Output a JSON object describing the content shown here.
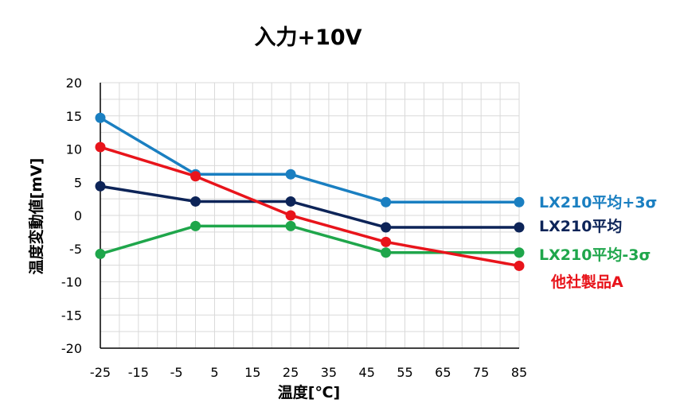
{
  "chart_data": {
    "type": "line",
    "title": "入力+10V",
    "xlabel": "温度[℃]",
    "ylabel": "温度変動値[mV]",
    "xlim": [
      -25,
      85
    ],
    "ylim": [
      -20,
      20
    ],
    "xticks": [
      -25,
      -15,
      -5,
      5,
      15,
      25,
      35,
      45,
      55,
      65,
      75,
      85
    ],
    "yticks": [
      20,
      15,
      10,
      5,
      0,
      -5,
      -10,
      -15,
      -20
    ],
    "xtick_labels": [
      "-25",
      "-15",
      "-5",
      "5",
      "15",
      "25",
      "35",
      "45",
      "55",
      "65",
      "75",
      "85"
    ],
    "ytick_labels": [
      "20",
      "15",
      "10",
      "5",
      "0",
      "-5",
      "-10",
      "-15",
      "-20"
    ],
    "grid": true,
    "legend": "series labels at right end of lines",
    "series": [
      {
        "name": "LX210平均+3σ",
        "color": "#1a7fc1",
        "x": [
          -25,
          0,
          25,
          50,
          85
        ],
        "y": [
          14.7,
          6.2,
          6.2,
          2.0,
          2.0
        ]
      },
      {
        "name": "LX210平均",
        "color": "#0d2458",
        "x": [
          -25,
          0,
          25,
          50,
          85
        ],
        "y": [
          4.4,
          2.1,
          2.1,
          -1.8,
          -1.8
        ]
      },
      {
        "name": "LX210平均-3σ",
        "color": "#1fa64b",
        "x": [
          -25,
          0,
          25,
          50,
          85
        ],
        "y": [
          -5.8,
          -1.6,
          -1.6,
          -5.6,
          -5.6
        ]
      },
      {
        "name": "他社製品A",
        "color": "#e8141b",
        "x": [
          -25,
          0,
          25,
          50,
          85
        ],
        "y": [
          10.3,
          5.9,
          0.0,
          -4.0,
          -7.6
        ]
      }
    ]
  }
}
